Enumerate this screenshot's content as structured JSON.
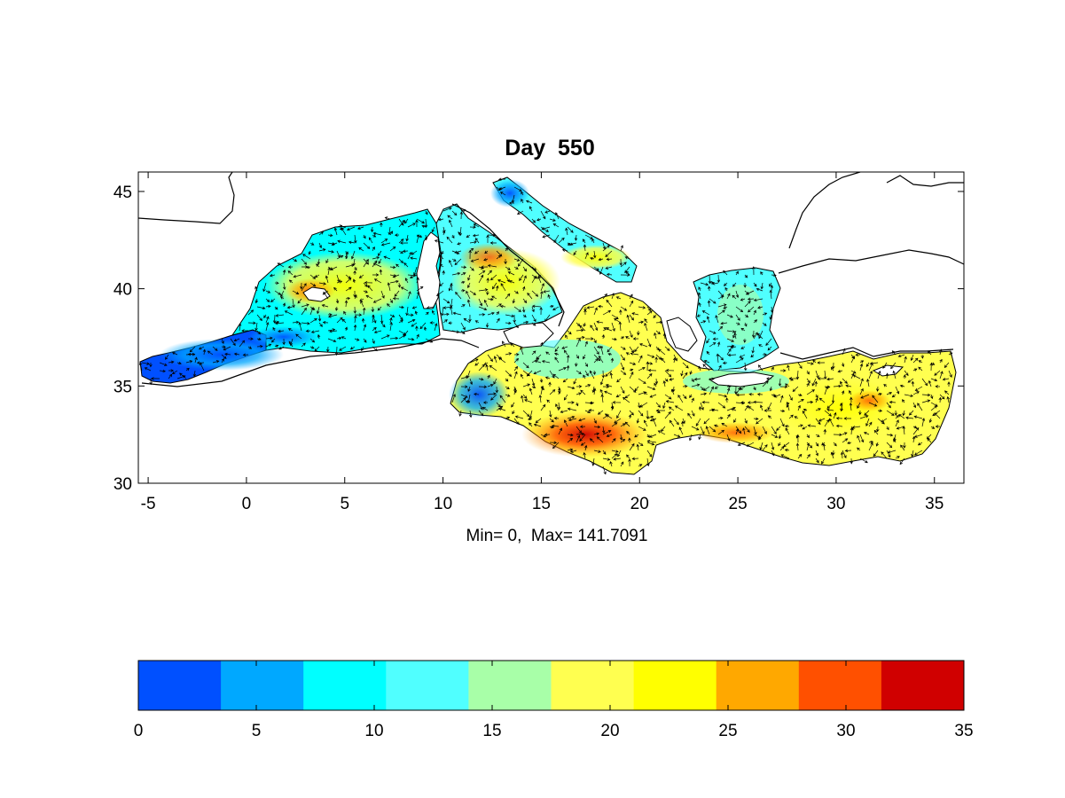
{
  "map": {
    "title": "Day  550",
    "caption": "Min= 0,  Max= 141.7091",
    "lon_range": [
      -5.5,
      36.5
    ],
    "lat_range": [
      30,
      46
    ],
    "lon_ticks": [
      -5,
      0,
      5,
      10,
      15,
      20,
      25,
      30,
      35
    ],
    "lat_ticks": [
      30,
      35,
      40,
      45
    ]
  },
  "colorbar": {
    "range": [
      0,
      35
    ],
    "ticks": [
      0,
      5,
      10,
      15,
      20,
      25,
      30,
      35
    ],
    "colors": [
      "#0050ff",
      "#00a8ff",
      "#00ffff",
      "#50ffff",
      "#a8ffa8",
      "#ffff50",
      "#ffff00",
      "#ffa800",
      "#ff5000",
      "#d00000"
    ]
  }
}
